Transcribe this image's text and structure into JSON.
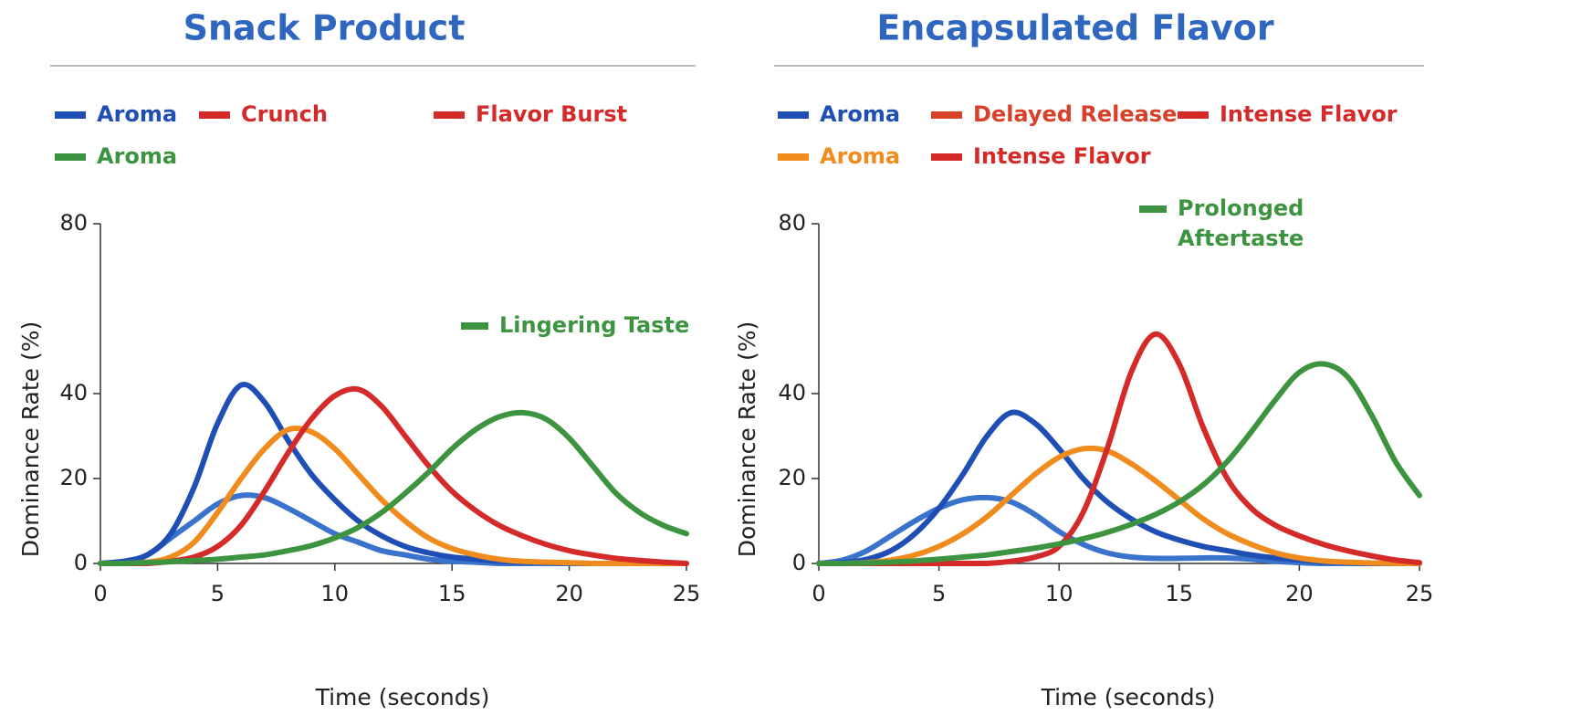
{
  "chart_data": [
    {
      "type": "line",
      "title": "Snack Product",
      "x_label": "Time (seconds)",
      "y_label": "Dominance Rate (%)",
      "x": [
        0,
        1,
        2,
        3,
        4,
        5,
        6,
        7,
        8,
        9,
        10,
        11,
        12,
        13,
        14,
        15,
        16,
        17,
        18,
        19,
        20,
        21,
        22,
        23,
        24,
        25
      ],
      "xlim": [
        0,
        25
      ],
      "xticks": [
        0,
        5,
        10,
        15,
        20,
        25
      ],
      "ylim": [
        0,
        80
      ],
      "yticks": [
        0,
        20,
        40,
        80
      ],
      "legend": [
        {
          "label": "Aroma",
          "color": "#1f4fb5"
        },
        {
          "label": "Crunch",
          "color": "#d42a2a"
        },
        {
          "label": "Flavor Burst",
          "color": "#d42a2a"
        },
        {
          "label": "Aroma",
          "color": "#3d9440"
        }
      ],
      "annotations": [
        {
          "lines": [
            "Lingering Taste"
          ],
          "color": "#3d9440"
        }
      ],
      "series": [
        {
          "color": "#3a73cc",
          "values": [
            0,
            0.5,
            2,
            6,
            10,
            14,
            16,
            15.5,
            13,
            10,
            7,
            5,
            3,
            2,
            1,
            0.5,
            0.3,
            0,
            0,
            0,
            0,
            0,
            0,
            0,
            0,
            0
          ]
        },
        {
          "color": "#1f4fb5",
          "values": [
            0,
            0.5,
            2,
            7,
            18,
            33,
            42,
            38,
            29,
            21,
            15,
            10,
            6.5,
            4,
            2.5,
            1.5,
            1,
            0.5,
            0.3,
            0.2,
            0.1,
            0,
            0,
            0,
            0,
            0
          ]
        },
        {
          "color": "#f08c1e",
          "values": [
            0,
            0,
            0.3,
            1.5,
            5,
            12,
            20,
            27,
            31.5,
            31,
            27,
            21,
            15,
            10,
            6,
            3.5,
            2,
            1,
            0.5,
            0.3,
            0.2,
            0,
            0,
            0,
            0,
            0
          ]
        },
        {
          "color": "#d42a2a",
          "values": [
            0,
            0,
            0,
            0.5,
            1.5,
            4,
            9,
            17,
            26,
            34,
            39.5,
            41,
            37,
            30,
            23,
            17,
            12.5,
            9,
            6.5,
            4.5,
            3,
            2,
            1.2,
            0.7,
            0.3,
            0
          ]
        },
        {
          "color": "#3d9440",
          "values": [
            0,
            0,
            0.2,
            0.4,
            0.7,
            1,
            1.5,
            2,
            3,
            4.2,
            6,
            8.5,
            12,
            16.5,
            21.5,
            27,
            31.5,
            34.5,
            35.5,
            34,
            29.5,
            23,
            16.5,
            12,
            9,
            7
          ]
        }
      ]
    },
    {
      "type": "line",
      "title": "Encapsulated Flavor",
      "x_label": "Time (seconds)",
      "y_label": "Dominance Rate (%)",
      "x": [
        0,
        1,
        2,
        3,
        4,
        5,
        6,
        7,
        8,
        9,
        10,
        11,
        12,
        13,
        14,
        15,
        16,
        17,
        18,
        19,
        20,
        21,
        22,
        23,
        24,
        25
      ],
      "xlim": [
        0,
        25
      ],
      "xticks": [
        0,
        5,
        10,
        15,
        20,
        25
      ],
      "ylim": [
        0,
        80
      ],
      "yticks": [
        0,
        20,
        40,
        80
      ],
      "legend": [
        {
          "label": "Aroma",
          "color": "#1f4fb5"
        },
        {
          "label": "Delayed Release",
          "color": "#d8402a"
        },
        {
          "label": "Intense Flavor",
          "color": "#d42a2a"
        },
        {
          "label": "Aroma",
          "color": "#f08c1e"
        },
        {
          "label": "Intense Flavor",
          "color": "#d42a2a"
        }
      ],
      "annotations": [
        {
          "lines": [
            "Prolonged",
            "Aftertaste"
          ],
          "color": "#3d9440"
        }
      ],
      "series": [
        {
          "color": "#3a73cc",
          "values": [
            0,
            0.8,
            3,
            6.5,
            10,
            13,
            15,
            15.5,
            14.5,
            11.5,
            7.5,
            4.5,
            2.5,
            1.5,
            1.2,
            1.2,
            1.3,
            1.3,
            1,
            0.5,
            0.2,
            0,
            0,
            0,
            0,
            0
          ]
        },
        {
          "color": "#1f4fb5",
          "values": [
            0,
            0.2,
            1,
            3,
            7,
            13,
            21,
            30,
            35.5,
            33,
            27,
            20,
            14.5,
            10.5,
            7.5,
            5.5,
            4,
            3,
            2,
            1.3,
            0.8,
            0.4,
            0.2,
            0,
            0,
            0
          ]
        },
        {
          "color": "#f08c1e",
          "values": [
            0,
            0,
            0.2,
            0.8,
            2,
            4,
            7,
            11,
            16,
            21,
            25,
            27,
            26.5,
            23.5,
            19.5,
            15,
            10.5,
            7,
            4.5,
            2.5,
            1.3,
            0.6,
            0.3,
            0.1,
            0,
            0
          ]
        },
        {
          "color": "#d42a2a",
          "values": [
            0,
            0,
            0,
            0,
            0,
            0,
            0,
            0,
            0.5,
            1.5,
            4,
            12,
            27,
            45,
            54,
            47,
            32,
            20,
            13,
            9,
            6.5,
            4.5,
            3,
            1.8,
            0.8,
            0.2
          ]
        },
        {
          "color": "#3d9440",
          "values": [
            0,
            0,
            0.1,
            0.3,
            0.6,
            1,
            1.5,
            2,
            2.8,
            3.6,
            4.6,
            5.8,
            7.3,
            9.2,
            11.5,
            14.5,
            18.5,
            24,
            31,
            38.5,
            45,
            47,
            44,
            35,
            24,
            16
          ]
        }
      ]
    }
  ]
}
